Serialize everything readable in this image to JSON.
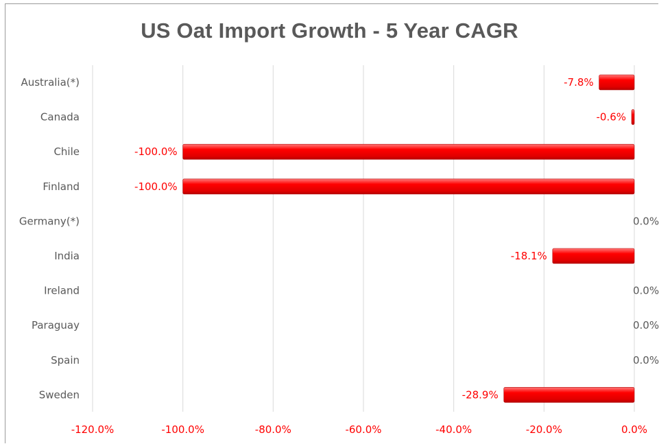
{
  "chart_data": {
    "type": "bar",
    "orientation": "horizontal",
    "title": "US Oat Import Growth - 5 Year CAGR",
    "categories": [
      "Australia(*)",
      "Canada",
      "Chile",
      "Finland",
      "Germany(*)",
      "India",
      "Ireland",
      "Paraguay",
      "Spain",
      "Sweden"
    ],
    "values": [
      -7.8,
      -0.6,
      -100.0,
      -100.0,
      0.0,
      -18.1,
      0.0,
      0.0,
      0.0,
      -28.9
    ],
    "value_labels": [
      "-7.8%",
      "-0.6%",
      "-100.0%",
      "-100.0%",
      "0.0%",
      "-18.1%",
      "0.0%",
      "0.0%",
      "0.0%",
      "-28.9%"
    ],
    "x_ticks": [
      "-120.0%",
      "-100.0%",
      "-80.0%",
      "-60.0%",
      "-40.0%",
      "-20.0%",
      "0.0%"
    ],
    "xlim": [
      -120,
      0
    ],
    "grid": "vertical",
    "legend": "none",
    "colors": {
      "bar": "#ff0000",
      "bar_highlight": "#ff6a6a",
      "bar_shadow": "#c00000",
      "negative_label": "#ff0000",
      "zero_label": "#595959",
      "category_label": "#595959",
      "title": "#595959",
      "gridline": "#d9d9d9"
    }
  }
}
